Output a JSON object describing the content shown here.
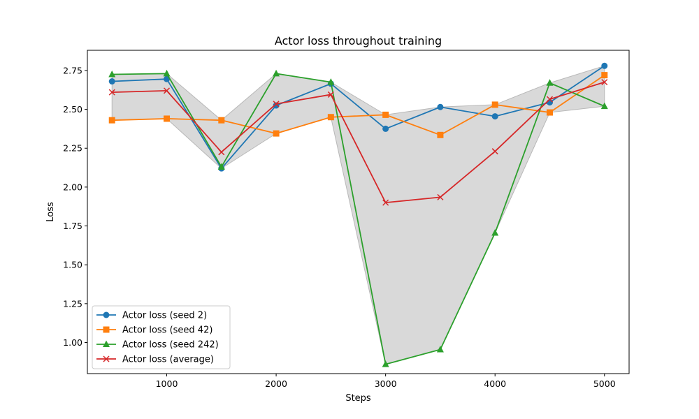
{
  "chart_data": {
    "type": "line",
    "title": "Actor loss throughout training",
    "xlabel": "Steps",
    "ylabel": "Loss",
    "x": [
      500,
      1000,
      1500,
      2000,
      2500,
      3000,
      3500,
      4000,
      4500,
      5000
    ],
    "xlim": [
      275,
      5225
    ],
    "ylim": [
      0.8,
      2.88
    ],
    "xticks": [
      1000,
      2000,
      3000,
      4000,
      5000
    ],
    "yticks": [
      1.0,
      1.25,
      1.5,
      1.75,
      2.0,
      2.25,
      2.5,
      2.75
    ],
    "ytick_labels": [
      "1.00",
      "1.25",
      "1.50",
      "1.75",
      "2.00",
      "2.25",
      "2.50",
      "2.75"
    ],
    "grid": false,
    "legend_position": "lower-left",
    "band": {
      "fill": "#d9d9d9",
      "stroke": "#b8b8b8",
      "from": "min of seeds",
      "to": "max of seeds"
    },
    "series": [
      {
        "name": "Actor loss (seed 2)",
        "color": "#1f77b4",
        "marker": "circle",
        "values": [
          2.68,
          2.695,
          2.12,
          2.525,
          2.665,
          2.375,
          2.515,
          2.455,
          2.545,
          2.78
        ]
      },
      {
        "name": "Actor loss (seed 42)",
        "color": "#ff7f0e",
        "marker": "square",
        "values": [
          2.43,
          2.44,
          2.43,
          2.345,
          2.45,
          2.465,
          2.335,
          2.53,
          2.48,
          2.72
        ]
      },
      {
        "name": "Actor loss (seed 242)",
        "color": "#2ca02c",
        "marker": "triangle",
        "values": [
          2.725,
          2.73,
          2.13,
          2.73,
          2.675,
          0.86,
          0.955,
          1.705,
          2.67,
          2.52
        ]
      },
      {
        "name": "Actor loss (average)",
        "color": "#d62728",
        "marker": "x",
        "values": [
          2.61,
          2.62,
          2.225,
          2.535,
          2.595,
          1.9,
          1.935,
          2.23,
          2.565,
          2.675
        ]
      }
    ]
  }
}
